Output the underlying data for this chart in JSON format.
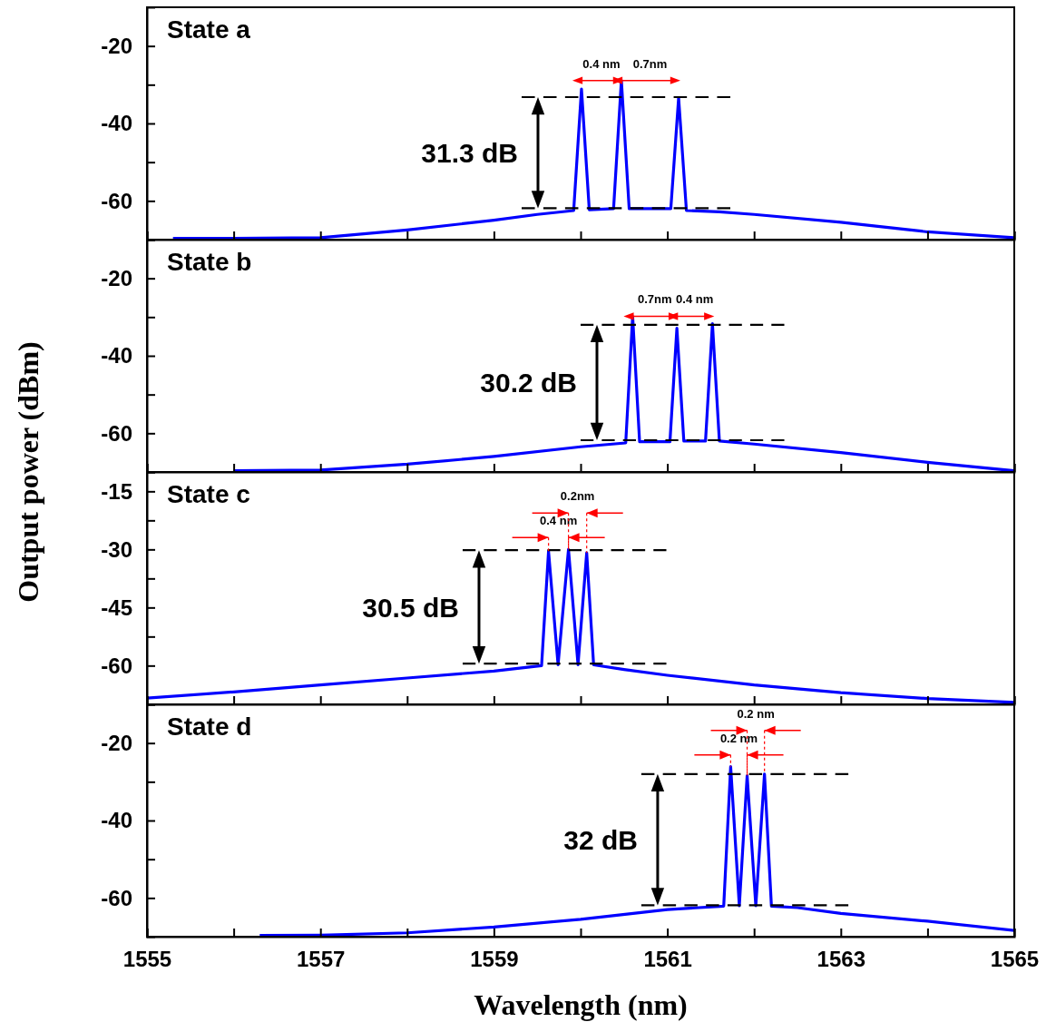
{
  "chart_data": [
    {
      "type": "line",
      "title": "State a",
      "ylabel": "Output power (dBm)",
      "xlim": [
        1555,
        1565
      ],
      "ylim": [
        -70,
        -10
      ],
      "tick_labels": "y",
      "line_style": "solid",
      "marker": "none",
      "xticks": [
        1555,
        {
          "value": 1556,
          "label": null
        },
        1557,
        {
          "value": 1558,
          "label": null
        },
        1559,
        {
          "value": 1560,
          "label": null
        },
        1561,
        {
          "value": 1562,
          "label": null
        },
        1563,
        {
          "value": 1564,
          "label": null
        },
        1565
      ],
      "yticks": [
        -60,
        {
          "value": -50,
          "label": null
        },
        -40,
        {
          "value": -30,
          "label": null
        },
        -20
      ],
      "series": [
        {
          "color": "#0000ff",
          "x": [
            1555.3,
            1556,
            1557,
            1558,
            1559,
            1559.5,
            1559.92,
            1560.01,
            1560.1,
            1560.38,
            1560.47,
            1560.56,
            1561.04,
            1561.13,
            1561.22,
            1561.6,
            1562,
            1563,
            1564,
            1565
          ],
          "values": [
            -69.7,
            -69.7,
            -69.5,
            -67.5,
            -65,
            -63.5,
            -62.5,
            -31.1,
            -62.3,
            -62,
            -28.9,
            -62,
            -62,
            -33.4,
            -62.5,
            -62.8,
            -63.5,
            -65.5,
            -68,
            -69.5
          ]
        },
        {
          "color": "#000000",
          "line_style": "dashed",
          "x": [
            1559.32,
            1561.73
          ],
          "values": [
            -33.2,
            -33.2
          ]
        },
        {
          "color": "#000000",
          "line_style": "dashed",
          "x": [
            1559.32,
            1561.73
          ],
          "values": [
            -61.9,
            -61.9
          ]
        }
      ],
      "annotations": [
        "31.3 dB",
        "0.4 nm",
        "0.7nm"
      ]
    },
    {
      "type": "line",
      "title": "State b",
      "xlim": [
        1555,
        1565
      ],
      "ylim": [
        -70,
        -10
      ],
      "tick_labels": "y",
      "line_style": "solid",
      "marker": "none",
      "xticks": [
        1555,
        {
          "value": 1556,
          "label": null
        },
        1557,
        {
          "value": 1558,
          "label": null
        },
        1559,
        {
          "value": 1560,
          "label": null
        },
        1561,
        {
          "value": 1562,
          "label": null
        },
        1563,
        {
          "value": 1564,
          "label": null
        },
        1565
      ],
      "yticks": [
        -60,
        {
          "value": -50,
          "label": null
        },
        -40,
        {
          "value": -30,
          "label": null
        },
        -20
      ],
      "series": [
        {
          "color": "#0000ff",
          "x": [
            1556,
            1557,
            1558,
            1559,
            1560,
            1560.52,
            1560.6,
            1560.68,
            1561.03,
            1561.11,
            1561.19,
            1561.44,
            1561.52,
            1561.6,
            1562,
            1563,
            1564,
            1565
          ],
          "values": [
            -69.7,
            -69.5,
            -68,
            -66,
            -63.5,
            -62.5,
            -29.8,
            -62.2,
            -62.2,
            -32.9,
            -62,
            -62,
            -31.7,
            -62,
            -62.8,
            -65,
            -67.5,
            -69.7
          ]
        },
        {
          "color": "#000000",
          "line_style": "dashed",
          "x": [
            1560.0,
            1562.35
          ],
          "values": [
            -32,
            -32
          ]
        },
        {
          "color": "#000000",
          "line_style": "dashed",
          "x": [
            1560.0,
            1562.35
          ],
          "values": [
            -61.8,
            -61.8
          ]
        }
      ],
      "annotations": [
        "30.2 dB",
        "0.7nm",
        "0.4 nm"
      ]
    },
    {
      "type": "line",
      "title": "State c",
      "xlim": [
        1555,
        1565
      ],
      "ylim": [
        -70,
        -10
      ],
      "tick_labels": "y",
      "line_style": "solid",
      "marker": "none",
      "xticks": [
        1555,
        {
          "value": 1556,
          "label": null
        },
        1557,
        {
          "value": 1558,
          "label": null
        },
        1559,
        {
          "value": 1560,
          "label": null
        },
        1561,
        {
          "value": 1562,
          "label": null
        },
        1563,
        {
          "value": 1564,
          "label": null
        },
        1565
      ],
      "yticks": [
        -60,
        {
          "value": -52.5,
          "label": null
        },
        -45,
        {
          "value": -37.5,
          "label": null
        },
        -30,
        {
          "value": -22.5,
          "label": null
        },
        -15
      ],
      "series": [
        {
          "color": "#0000ff",
          "x": [
            1555,
            1556,
            1557,
            1558,
            1559,
            1559.55,
            1559.63,
            1559.74,
            1559.86,
            1559.97,
            1560.07,
            1560.15,
            1560.5,
            1561,
            1562,
            1563,
            1564,
            1565
          ],
          "values": [
            -68.4,
            -66.8,
            -65,
            -63.2,
            -61.4,
            -60,
            -30.5,
            -59.8,
            -30,
            -59.8,
            -30.9,
            -59.8,
            -61,
            -62.5,
            -65,
            -67,
            -68.5,
            -69.5
          ]
        },
        {
          "color": "#000000",
          "line_style": "dashed",
          "x": [
            1558.64,
            1560.99
          ],
          "values": [
            -30.2,
            -30.2
          ]
        },
        {
          "color": "#000000",
          "line_style": "dashed",
          "x": [
            1558.64,
            1560.99
          ],
          "values": [
            -59.5,
            -59.5
          ]
        }
      ],
      "annotations": [
        "30.5 dB",
        {
          "text": "0.4 nm",
          "x": 1559.86,
          "y": -30
        },
        {
          "text": "0.2nm",
          "x": 1560.07,
          "y": -30.9
        }
      ]
    },
    {
      "type": "line",
      "title": "State d",
      "xlabel": "Wavelength (nm)",
      "xlim": [
        1555,
        1565
      ],
      "ylim": [
        -70,
        -10
      ],
      "line_style": "solid",
      "marker": "none",
      "xticks": [
        1555,
        {
          "value": 1556,
          "label": null
        },
        1557,
        {
          "value": 1558,
          "label": null
        },
        1559,
        {
          "value": 1560,
          "label": null
        },
        1561,
        {
          "value": 1562,
          "label": null
        },
        1563,
        {
          "value": 1564,
          "label": null
        },
        1565
      ],
      "yticks": [
        -60,
        {
          "value": -50,
          "label": null
        },
        -40,
        {
          "value": -30,
          "label": null
        },
        -20
      ],
      "series": [
        {
          "color": "#0000ff",
          "x": [
            1556.3,
            1557,
            1558,
            1559,
            1560,
            1561,
            1561.65,
            1561.73,
            1561.83,
            1561.92,
            1562.02,
            1562.12,
            1562.2,
            1562.5,
            1563,
            1564,
            1565
          ],
          "values": [
            -69.7,
            -69.6,
            -69,
            -67.5,
            -65.5,
            -63,
            -62.1,
            -26.1,
            -62,
            -28.4,
            -62,
            -28,
            -62.1,
            -62.5,
            -64,
            -66,
            -68.4
          ]
        },
        {
          "color": "#000000",
          "line_style": "dashed",
          "x": [
            1560.7,
            1563.09
          ],
          "values": [
            -28,
            -28
          ]
        },
        {
          "color": "#000000",
          "line_style": "dashed",
          "x": [
            1560.7,
            1563.09
          ],
          "values": [
            -61.9,
            -61.9
          ]
        }
      ],
      "annotations": [
        "32 dB",
        {
          "text": "0.2 nm",
          "x": 1561.92,
          "y": -28.4
        },
        {
          "text": "0.2 nm",
          "x": 1562.12,
          "y": -28
        }
      ]
    }
  ]
}
